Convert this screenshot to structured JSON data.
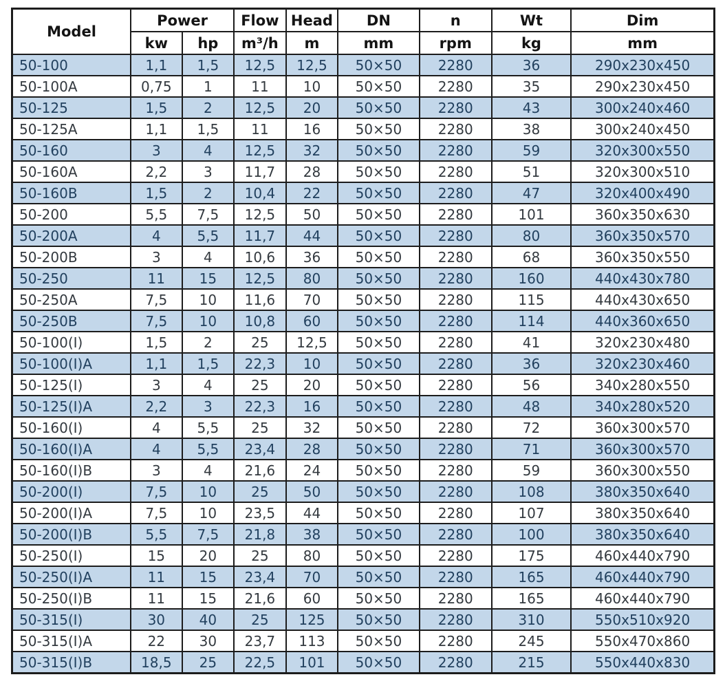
{
  "colors": {
    "row_highlight": "#c3d7ea",
    "row_plain": "#ffffff",
    "border": "#1c1c1c",
    "header_text": "#141414",
    "body_text": "#33393f",
    "highlight_row_text": "#21405e",
    "background": "#ffffff"
  },
  "chart_data": {
    "type": "table",
    "header": {
      "model": "Model",
      "power": "Power",
      "flow": "Flow",
      "head": "Head",
      "dn": "DN",
      "n": "n",
      "wt": "Wt",
      "dim": "Dim",
      "units": {
        "kw": "kw",
        "hp": "hp",
        "flow": "m³/h",
        "head": "m",
        "dn": "mm",
        "n": "rpm",
        "wt": "kg",
        "dim": "mm"
      }
    },
    "column_keys": [
      "model",
      "kw",
      "hp",
      "flow",
      "head",
      "dn",
      "rpm",
      "wt",
      "dim"
    ],
    "rows": [
      [
        "50-100",
        "1,1",
        "1,5",
        "12,5",
        "12,5",
        "50×50",
        "2280",
        "36",
        "290x230x450"
      ],
      [
        "50-100A",
        "0,75",
        "1",
        "11",
        "10",
        "50×50",
        "2280",
        "35",
        "290x230x450"
      ],
      [
        "50-125",
        "1,5",
        "2",
        "12,5",
        "20",
        "50×50",
        "2280",
        "43",
        "300x240x460"
      ],
      [
        "50-125A",
        "1,1",
        "1,5",
        "11",
        "16",
        "50×50",
        "2280",
        "38",
        "300x240x450"
      ],
      [
        "50-160",
        "3",
        "4",
        "12,5",
        "32",
        "50×50",
        "2280",
        "59",
        "320x300x550"
      ],
      [
        "50-160A",
        "2,2",
        "3",
        "11,7",
        "28",
        "50×50",
        "2280",
        "51",
        "320x300x510"
      ],
      [
        "50-160B",
        "1,5",
        "2",
        "10,4",
        "22",
        "50×50",
        "2280",
        "47",
        "320x400x490"
      ],
      [
        "50-200",
        "5,5",
        "7,5",
        "12,5",
        "50",
        "50×50",
        "2280",
        "101",
        "360x350x630"
      ],
      [
        "50-200A",
        "4",
        "5,5",
        "11,7",
        "44",
        "50×50",
        "2280",
        "80",
        "360x350x570"
      ],
      [
        "50-200B",
        "3",
        "4",
        "10,6",
        "36",
        "50×50",
        "2280",
        "68",
        "360x350x550"
      ],
      [
        "50-250",
        "11",
        "15",
        "12,5",
        "80",
        "50×50",
        "2280",
        "160",
        "440x430x780"
      ],
      [
        "50-250A",
        "7,5",
        "10",
        "11,6",
        "70",
        "50×50",
        "2280",
        "115",
        "440x430x650"
      ],
      [
        "50-250B",
        "7,5",
        "10",
        "10,8",
        "60",
        "50×50",
        "2280",
        "114",
        "440x360x650"
      ],
      [
        "50-100(I)",
        "1,5",
        "2",
        "25",
        "12,5",
        "50×50",
        "2280",
        "41",
        "320x230x480"
      ],
      [
        "50-100(I)A",
        "1,1",
        "1,5",
        "22,3",
        "10",
        "50×50",
        "2280",
        "36",
        "320x230x460"
      ],
      [
        "50-125(I)",
        "3",
        "4",
        "25",
        "20",
        "50×50",
        "2280",
        "56",
        "340x280x550"
      ],
      [
        "50-125(I)A",
        "2,2",
        "3",
        "22,3",
        "16",
        "50×50",
        "2280",
        "48",
        "340x280x520"
      ],
      [
        "50-160(I)",
        "4",
        "5,5",
        "25",
        "32",
        "50×50",
        "2280",
        "72",
        "360x300x570"
      ],
      [
        "50-160(I)A",
        "4",
        "5,5",
        "23,4",
        "28",
        "50×50",
        "2280",
        "71",
        "360x300x570"
      ],
      [
        "50-160(I)B",
        "3",
        "4",
        "21,6",
        "24",
        "50×50",
        "2280",
        "59",
        "360x300x550"
      ],
      [
        "50-200(I)",
        "7,5",
        "10",
        "25",
        "50",
        "50×50",
        "2280",
        "108",
        "380x350x640"
      ],
      [
        "50-200(I)A",
        "7,5",
        "10",
        "23,5",
        "44",
        "50×50",
        "2280",
        "107",
        "380x350x640"
      ],
      [
        "50-200(I)B",
        "5,5",
        "7,5",
        "21,8",
        "38",
        "50×50",
        "2280",
        "100",
        "380x350x640"
      ],
      [
        "50-250(I)",
        "15",
        "20",
        "25",
        "80",
        "50×50",
        "2280",
        "175",
        "460x440x790"
      ],
      [
        "50-250(I)A",
        "11",
        "15",
        "23,4",
        "70",
        "50×50",
        "2280",
        "165",
        "460x440x790"
      ],
      [
        "50-250(I)B",
        "11",
        "15",
        "21,6",
        "60",
        "50×50",
        "2280",
        "165",
        "460x440x790"
      ],
      [
        "50-315(I)",
        "30",
        "40",
        "25",
        "125",
        "50×50",
        "2280",
        "310",
        "550x510x920"
      ],
      [
        "50-315(I)A",
        "22",
        "30",
        "23,7",
        "113",
        "50×50",
        "2280",
        "245",
        "550x470x860"
      ],
      [
        "50-315(I)B",
        "18,5",
        "25",
        "22,5",
        "101",
        "50×50",
        "2280",
        "215",
        "550x440x830"
      ]
    ]
  }
}
